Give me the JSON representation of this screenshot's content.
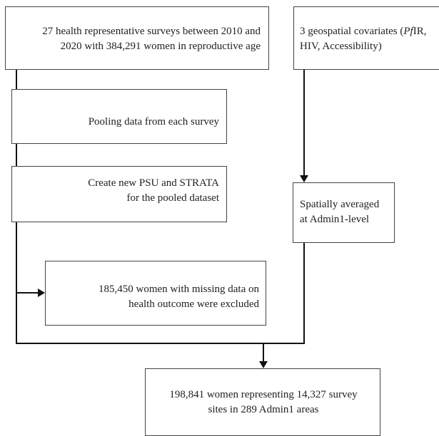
{
  "boxes": {
    "surveys": {
      "line1": "27 health representative surveys between 2010 and",
      "line2": "2020 with 384,291 women in reproductive age"
    },
    "covariates": {
      "line1_pre": "3 geospatial covariates (",
      "line1_italic": "Pf",
      "line1_post": "IR,",
      "line2": "HIV, Accessibility)"
    },
    "pooling": {
      "text": "Pooling data from each survey"
    },
    "psu": {
      "line1": "Create new PSU and STRATA",
      "line2": "for the pooled dataset"
    },
    "spatial": {
      "line1": "Spatially averaged",
      "line2": "at Admin1-level"
    },
    "excluded": {
      "line1": "185,450 women with missing data on",
      "line2": "health outcome were excluded"
    },
    "final": {
      "line1": "198,841 women representing 14,327 survey",
      "line2": "sites in 289 Admin1 areas"
    }
  }
}
